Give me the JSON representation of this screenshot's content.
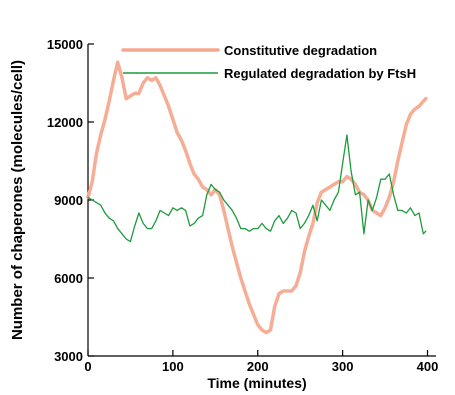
{
  "chart_data": {
    "type": "line",
    "title": "",
    "xlabel": "Time (minutes)",
    "ylabel": "Number of chaperones (molecules/cell)",
    "xlim": [
      0,
      410
    ],
    "ylim": [
      3000,
      15000
    ],
    "xticks": [
      0,
      100,
      200,
      300,
      400
    ],
    "yticks": [
      3000,
      6000,
      9000,
      12000,
      15000
    ],
    "grid": false,
    "legend_position": "top-right",
    "colors": {
      "constitutive": "#F4A98F",
      "regulated": "#1F9A3C",
      "axis": "#000000"
    },
    "series": [
      {
        "name": "Constitutive degradation",
        "x": [
          0,
          5,
          10,
          15,
          20,
          25,
          30,
          35,
          40,
          45,
          50,
          55,
          60,
          65,
          70,
          75,
          80,
          85,
          90,
          95,
          100,
          105,
          110,
          115,
          120,
          125,
          130,
          135,
          140,
          145,
          150,
          155,
          160,
          165,
          170,
          175,
          180,
          185,
          190,
          195,
          200,
          205,
          210,
          215,
          220,
          225,
          230,
          235,
          240,
          245,
          250,
          255,
          260,
          265,
          270,
          275,
          280,
          285,
          290,
          295,
          300,
          305,
          310,
          315,
          320,
          325,
          330,
          335,
          340,
          345,
          350,
          355,
          360,
          365,
          370,
          375,
          380,
          385,
          390,
          395,
          398
        ],
        "values": [
          9100,
          9700,
          10800,
          11500,
          12100,
          12800,
          13600,
          14300,
          13700,
          12900,
          13000,
          13100,
          13100,
          13500,
          13700,
          13600,
          13700,
          13400,
          13000,
          12600,
          12100,
          11600,
          11300,
          10900,
          10400,
          10000,
          9800,
          9500,
          9400,
          9200,
          9400,
          9200,
          8600,
          7900,
          7200,
          6600,
          6000,
          5500,
          5000,
          4600,
          4200,
          4000,
          3900,
          4000,
          4900,
          5400,
          5500,
          5500,
          5500,
          5700,
          6200,
          7000,
          7600,
          8100,
          8900,
          9300,
          9400,
          9500,
          9600,
          9700,
          9700,
          9900,
          9800,
          9600,
          9300,
          9200,
          9000,
          8600,
          8500,
          8400,
          8700,
          9100,
          9700,
          10500,
          11200,
          11900,
          12300,
          12500,
          12600,
          12800,
          12900
        ]
      },
      {
        "name": "Regulated degradation by FtsH",
        "x": [
          0,
          5,
          10,
          15,
          20,
          25,
          30,
          35,
          40,
          45,
          50,
          55,
          60,
          65,
          70,
          75,
          80,
          85,
          90,
          95,
          100,
          105,
          110,
          115,
          120,
          125,
          130,
          135,
          140,
          145,
          150,
          155,
          160,
          165,
          170,
          175,
          180,
          185,
          190,
          195,
          200,
          205,
          210,
          215,
          220,
          225,
          230,
          235,
          240,
          245,
          250,
          255,
          260,
          265,
          270,
          275,
          280,
          285,
          290,
          295,
          300,
          305,
          310,
          315,
          320,
          325,
          330,
          335,
          340,
          345,
          350,
          355,
          360,
          365,
          370,
          375,
          380,
          385,
          390,
          395,
          398
        ],
        "values": [
          9100,
          9000,
          8900,
          8800,
          8500,
          8300,
          8200,
          7900,
          7700,
          7500,
          7400,
          8000,
          8500,
          8100,
          7900,
          7900,
          8200,
          8600,
          8500,
          8400,
          8700,
          8600,
          8700,
          8600,
          8000,
          8100,
          8300,
          8400,
          9200,
          9600,
          9400,
          9300,
          9000,
          8800,
          8600,
          8300,
          7900,
          7900,
          7800,
          7900,
          7900,
          8100,
          7900,
          7800,
          8200,
          8400,
          8100,
          8300,
          8600,
          8500,
          7900,
          8100,
          8400,
          8800,
          8200,
          9000,
          8800,
          8600,
          9000,
          9300,
          10400,
          11500,
          10100,
          9200,
          9300,
          7700,
          9000,
          8600,
          9100,
          9800,
          9800,
          10000,
          9200,
          8600,
          8600,
          8500,
          8700,
          8400,
          8500,
          7700,
          7800
        ]
      }
    ]
  }
}
